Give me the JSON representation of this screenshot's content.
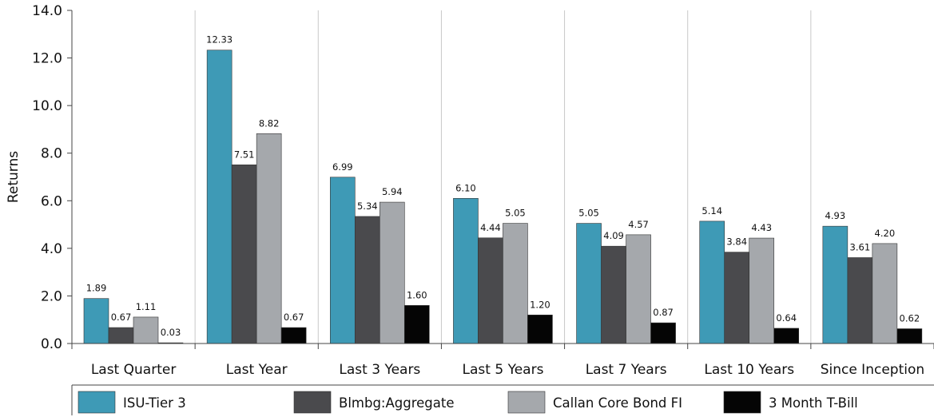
{
  "chart_data": {
    "type": "bar",
    "ylabel": "Returns",
    "ylim": [
      0,
      14
    ],
    "yticks": [
      "0.0",
      "2.0",
      "4.0",
      "6.0",
      "8.0",
      "10.0",
      "12.0",
      "14.0"
    ],
    "grid": "vertical separators between categories",
    "legend_position": "bottom",
    "categories": [
      "Last Quarter",
      "Last Year",
      "Last 3 Years",
      "Last 5 Years",
      "Last 7 Years",
      "Last 10 Years",
      "Since Inception"
    ],
    "series": [
      {
        "name": "ISU-Tier 3",
        "color": "#3e9ab6",
        "values": [
          1.89,
          12.33,
          6.99,
          6.1,
          5.05,
          5.14,
          4.93
        ],
        "labels": [
          "1.89",
          "12.33",
          "6.99",
          "6.10",
          "5.05",
          "5.14",
          "4.93"
        ]
      },
      {
        "name": "Blmbg:Aggregate",
        "color": "#4a4a4d",
        "values": [
          0.67,
          7.51,
          5.34,
          4.44,
          4.09,
          3.84,
          3.61
        ],
        "labels": [
          "0.67",
          "7.51",
          "5.34",
          "4.44",
          "4.09",
          "3.84",
          "3.61"
        ]
      },
      {
        "name": "Callan Core Bond FI",
        "color": "#a5a8ac",
        "values": [
          1.11,
          8.82,
          5.94,
          5.05,
          4.57,
          4.43,
          4.2
        ],
        "labels": [
          "1.11",
          "8.82",
          "5.94",
          "5.05",
          "4.57",
          "4.43",
          "4.20"
        ]
      },
      {
        "name": "3 Month T-Bill",
        "color": "#050505",
        "values": [
          0.03,
          0.67,
          1.6,
          1.2,
          0.87,
          0.64,
          0.62
        ],
        "labels": [
          "0.03",
          "0.67",
          "1.60",
          "1.20",
          "0.87",
          "0.64",
          "0.62"
        ]
      }
    ]
  }
}
